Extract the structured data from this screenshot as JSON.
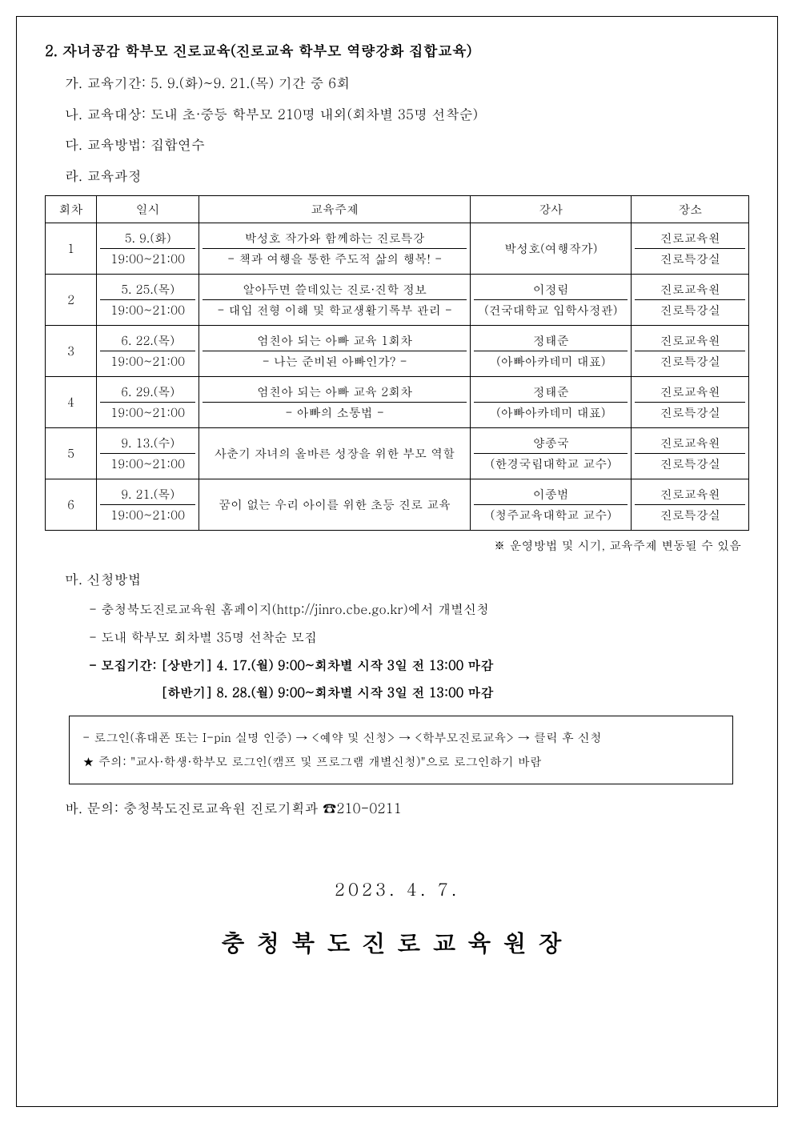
{
  "section": {
    "title": "2. 자녀공감 학부모 진로교육(진로교육 학부모 역량강화 집합교육)",
    "items": {
      "ga": "가. 교육기간: 5. 9.(화)~9. 21.(목) 기간 중 6회",
      "na": "나. 교육대상: 도내 초·중등 학부모 210명 내외(회차별 35명 선착순)",
      "da": "다. 교육방법: 집합연수",
      "ra": "라. 교육과정",
      "ma": "마. 신청방법",
      "ba": "바. 문의: 충청북도진로교육원  진로기획과  ☎210-0211"
    },
    "application": {
      "line1": "- 충청북도진로교육원 홈페이지(http://jinro.cbe.go.kr)에서 개별신청",
      "line2": "- 도내 학부모 회차별 35명 선착순 모집",
      "line3": "- 모집기간: [상반기] 4. 17.(월) 9:00~회차별 시작 3일 전 13:00 마감",
      "line4": "[하반기] 8. 28.(월) 9:00~회차별 시작 3일 전 13:00 마감"
    },
    "infobox": {
      "line1": "- 로그인(휴대폰 또는 I-pin 실명 인증) → <예약 및 신청> → <학부모진로교육> → 클릭 후 신청",
      "line2": "★ 주의: \"교사·학생·학부모 로그인(캠프 및 프로그램 개별신청)\"으로 로그인하기 바람"
    }
  },
  "table": {
    "headers": {
      "num": "회차",
      "date": "일시",
      "topic": "교육주제",
      "lecturer": "강사",
      "place": "장소"
    },
    "rows": [
      {
        "num": "1",
        "date1": "5. 9.(화)",
        "date2": "19:00~21:00",
        "topic1": "박성호 작가와 함께하는 진로특강",
        "topic2": "- 책과 여행을 통한 주도적 삶의 행복! -",
        "lecturer_single": "박성호(여행작가)",
        "lecturer1": "",
        "lecturer2": "",
        "place1": "진로교육원",
        "place2": "진로특강실"
      },
      {
        "num": "2",
        "date1": "5. 25.(목)",
        "date2": "19:00~21:00",
        "topic1": "알아두면 쓸데있는 진로·진학 정보",
        "topic2": "- 대입 전형 이해 및 학교생활기록부 관리 -",
        "lecturer1": "이정림",
        "lecturer2": "(건국대학교 입학사정관)",
        "place1": "진로교육원",
        "place2": "진로특강실"
      },
      {
        "num": "3",
        "date1": "6. 22.(목)",
        "date2": "19:00~21:00",
        "topic1": "엄친아 되는 아빠 교육 1회차",
        "topic2": "- 나는 준비된 아빠인가? -",
        "lecturer1": "정태준",
        "lecturer2": "(아빠아카데미 대표)",
        "place1": "진로교육원",
        "place2": "진로특강실"
      },
      {
        "num": "4",
        "date1": "6. 29.(목)",
        "date2": "19:00~21:00",
        "topic1": "엄친아 되는 아빠 교육 2회차",
        "topic2": "- 아빠의 소통법 -",
        "lecturer1": "정태준",
        "lecturer2": "(아빠아카데미 대표)",
        "place1": "진로교육원",
        "place2": "진로특강실"
      },
      {
        "num": "5",
        "date1": "9. 13.(수)",
        "date2": "19:00~21:00",
        "topic_single": "사춘기 자녀의 올바른 성장을 위한 부모 역할",
        "lecturer1": "양종국",
        "lecturer2": "(한경국립대학교 교수)",
        "place1": "진로교육원",
        "place2": "진로특강실"
      },
      {
        "num": "6",
        "date1": "9. 21.(목)",
        "date2": "19:00~21:00",
        "topic_single": "꿈이 없는 우리 아이를 위한 초등 진로 교육",
        "lecturer1": "이종범",
        "lecturer2": "(청주교육대학교 교수)",
        "place1": "진로교육원",
        "place2": "진로특강실"
      }
    ],
    "note": "※ 운영방법 및 시기, 교육주제 변동될 수 있음"
  },
  "footer": {
    "date": "2023. 4. 7.",
    "sign": "충청북도진로교육원장"
  },
  "style": {
    "border_color": "#000000",
    "background_color": "#ffffff",
    "title_fontsize": 18,
    "body_fontsize": 17,
    "table_fontsize": 15,
    "sign_fontsize": 30,
    "date_fontsize": 22
  }
}
